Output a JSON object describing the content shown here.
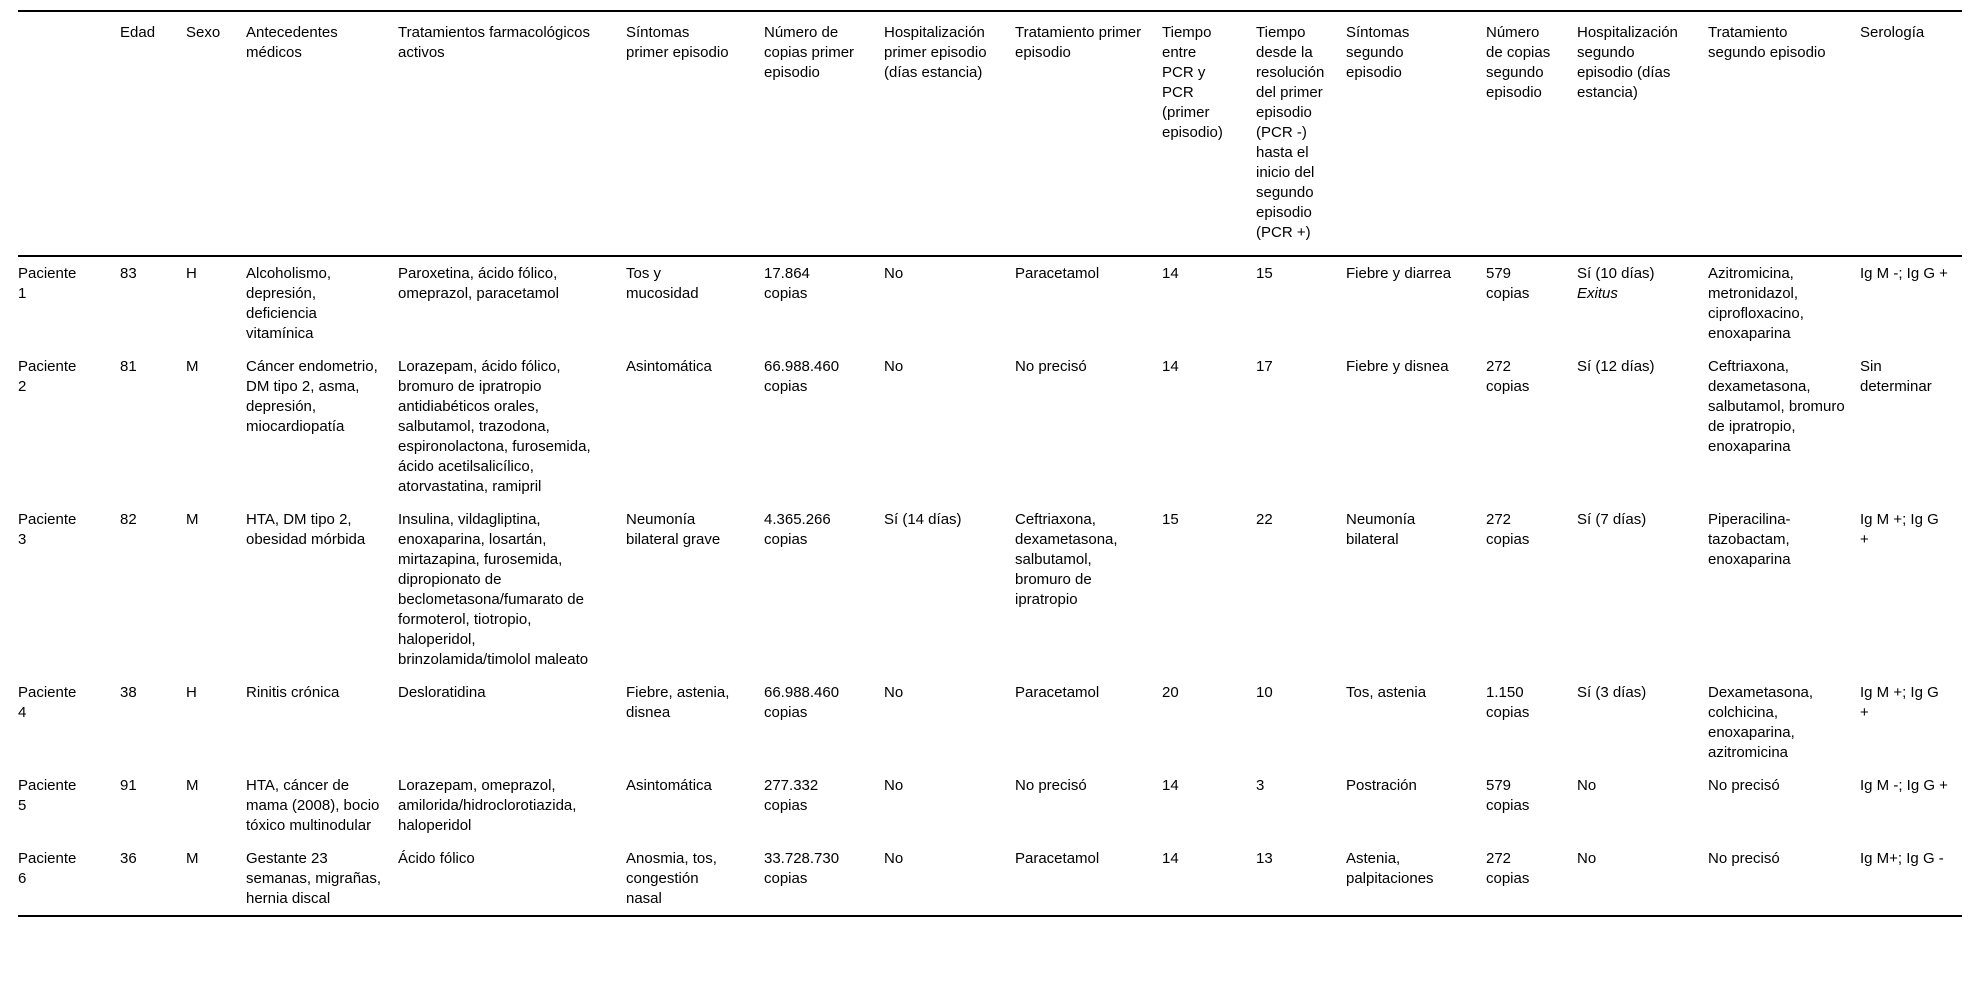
{
  "table": {
    "headers": [
      "",
      "Edad",
      "Sexo",
      "Antecedentes médicos",
      "Tratamientos farmacológicos activos",
      "Síntomas primer episodio",
      "Número de copias primer episodio",
      "Hospitalización primer episodio (días estancia)",
      "Tratamiento primer episodio",
      "Tiempo entre PCR y PCR (primer episodio)",
      "Tiempo desde la resolución del primer episodio (PCR -) hasta el inicio del segundo episodio (PCR +)",
      "Síntomas segundo episodio",
      "Número de copias segundo episodio",
      "Hospitalización segundo episodio (días estancia)",
      "Tratamiento segundo episodio",
      "Serología"
    ],
    "rows": [
      [
        "Paciente 1",
        "83",
        "H",
        "Alcoholismo, depresión, deficiencia vitamínica",
        "Paroxetina, ácido fólico, omeprazol, paracetamol",
        "Tos y mucosidad",
        "17.864 copias",
        "No",
        "Paracetamol",
        "14",
        "15",
        "Fiebre y diarrea",
        "579 copias",
        {
          "text": "Sí (10 días)",
          "italic_note": "Exitus"
        },
        "Azitromicina, metronidazol, ciprofloxacino, enoxaparina",
        "Ig M -; Ig G +"
      ],
      [
        "Paciente 2",
        "81",
        "M",
        "Cáncer endometrio, DM tipo 2, asma, depresión, miocardiopatía",
        "Lorazepam, ácido fólico, bromuro de ipratropio antidiabéticos orales, salbutamol, trazodona, espironolactona, furosemida, ácido acetilsalicílico, atorvastatina, ramipril",
        "Asintomática",
        "66.988.460 copias",
        "No",
        "No precisó",
        "14",
        "17",
        "Fiebre y disnea",
        "272 copias",
        "Sí (12 días)",
        "Ceftriaxona, dexametasona, salbutamol, bromuro de ipratropio, enoxaparina",
        "Sin determinar"
      ],
      [
        "Paciente 3",
        "82",
        "M",
        "HTA, DM tipo 2, obesidad mórbida",
        "Insulina, vildagliptina, enoxaparina, losartán, mirtazapina, furosemida, dipropionato de beclometasona/fumarato de formoterol, tiotropio, haloperidol, brinzolamida/timolol maleato",
        "Neumonía bilateral grave",
        "4.365.266 copias",
        "Sí (14 días)",
        "Ceftriaxona, dexametasona, salbutamol, bromuro de ipratropio",
        "15",
        "22",
        "Neumonía bilateral",
        "272 copias",
        "Sí (7 días)",
        "Piperacilina-tazobactam, enoxaparina",
        "Ig M +; Ig G +"
      ],
      [
        "Paciente 4",
        "38",
        "H",
        "Rinitis crónica",
        "Desloratidina",
        "Fiebre, astenia, disnea",
        "66.988.460 copias",
        "No",
        "Paracetamol",
        "20",
        "10",
        "Tos, astenia",
        "1.150 copias",
        "Sí (3 días)",
        "Dexametasona, colchicina, enoxaparina, azitromicina",
        "Ig M +; Ig G +"
      ],
      [
        "Paciente 5",
        "91",
        "M",
        "HTA, cáncer de mama (2008), bocio tóxico multinodular",
        "Lorazepam, omeprazol, amilorida/hidroclorotiazida, haloperidol",
        "Asintomática",
        "277.332 copias",
        "No",
        "No precisó",
        "14",
        "3",
        "Postración",
        "579 copias",
        "No",
        "No precisó",
        "Ig M -; Ig G +"
      ],
      [
        "Paciente 6",
        "36",
        "M",
        "Gestante 23 semanas, migrañas, hernia discal",
        "Ácido fólico",
        "Anosmia, tos, congestión nasal",
        "33.728.730 copias",
        "No",
        "Paracetamol",
        "14",
        "13",
        "Astenia, palpitaciones",
        "272 copias",
        "No",
        "No precisó",
        "Ig M+; Ig G -"
      ]
    ]
  }
}
